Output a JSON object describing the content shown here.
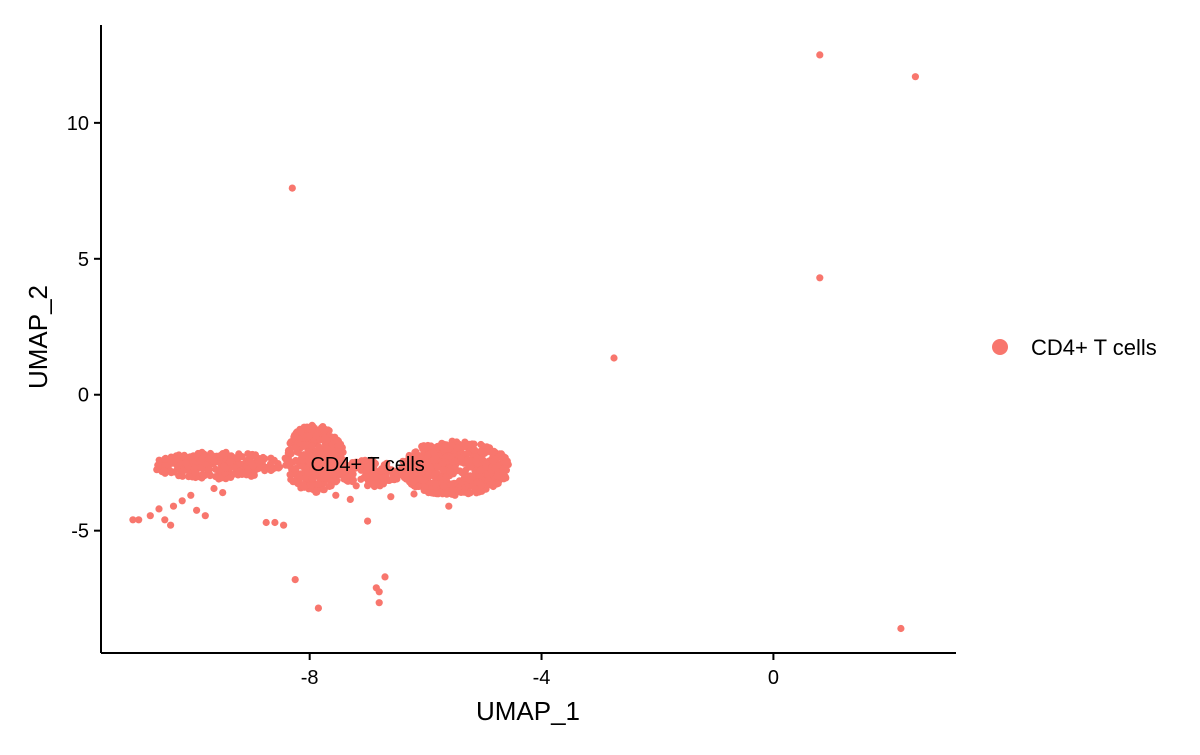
{
  "chart_data": {
    "type": "scatter",
    "xlabel": "UMAP_1",
    "ylabel": "UMAP_2",
    "xlim": [
      -11.6,
      3.15
    ],
    "ylim": [
      -9.5,
      13.6
    ],
    "x_ticks": [
      -8,
      -4,
      0
    ],
    "y_ticks": [
      -5,
      0,
      5,
      10
    ],
    "x_tick_labels": [
      "-8",
      "-4",
      "0"
    ],
    "y_tick_labels": [
      "-5",
      "0",
      "5",
      "10"
    ],
    "grid": false,
    "legend_position": "right",
    "series": [
      {
        "name": "CD4+ T cells",
        "color": "#F8766D",
        "clusters": [
          {
            "x_range": [
              -8.45,
              -7.4
            ],
            "y_range": [
              -3.6,
              -1.1
            ],
            "count": 380
          },
          {
            "x_range": [
              -6.45,
              -4.55
            ],
            "y_range": [
              -3.7,
              -1.7
            ],
            "count": 520
          },
          {
            "x_range": [
              -10.7,
              -8.5
            ],
            "y_range": [
              -3.1,
              -2.1
            ],
            "count": 240
          },
          {
            "x_range": [
              -7.5,
              -6.45
            ],
            "y_range": [
              -3.4,
              -2.4
            ],
            "count": 120
          }
        ],
        "points": [
          {
            "x": 0.8,
            "y": 12.5
          },
          {
            "x": 2.45,
            "y": 11.7
          },
          {
            "x": -8.3,
            "y": 7.6
          },
          {
            "x": 0.8,
            "y": 4.3
          },
          {
            "x": -2.75,
            "y": 1.35
          },
          {
            "x": -11.05,
            "y": -4.6
          },
          {
            "x": -10.95,
            "y": -4.6
          },
          {
            "x": -10.75,
            "y": -4.45
          },
          {
            "x": -10.6,
            "y": -4.2
          },
          {
            "x": -10.5,
            "y": -4.6
          },
          {
            "x": -10.4,
            "y": -4.8
          },
          {
            "x": -10.35,
            "y": -4.1
          },
          {
            "x": -10.2,
            "y": -3.9
          },
          {
            "x": -10.05,
            "y": -3.7
          },
          {
            "x": -9.95,
            "y": -4.25
          },
          {
            "x": -9.8,
            "y": -4.45
          },
          {
            "x": -9.65,
            "y": -3.45
          },
          {
            "x": -9.5,
            "y": -3.6
          },
          {
            "x": -8.75,
            "y": -4.7
          },
          {
            "x": -8.6,
            "y": -4.7
          },
          {
            "x": -8.45,
            "y": -4.8
          },
          {
            "x": -8.25,
            "y": -6.8
          },
          {
            "x": -7.85,
            "y": -7.85
          },
          {
            "x": -7.55,
            "y": -3.7
          },
          {
            "x": -7.3,
            "y": -3.85
          },
          {
            "x": -7.0,
            "y": -4.65
          },
          {
            "x": -6.85,
            "y": -7.1
          },
          {
            "x": -6.8,
            "y": -7.25
          },
          {
            "x": -6.8,
            "y": -7.65
          },
          {
            "x": -6.7,
            "y": -6.7
          },
          {
            "x": -6.9,
            "y": -3.3
          },
          {
            "x": -6.6,
            "y": -3.75
          },
          {
            "x": -6.2,
            "y": -3.65
          },
          {
            "x": -5.95,
            "y": -3.6
          },
          {
            "x": -5.6,
            "y": -4.1
          },
          {
            "x": 2.2,
            "y": -8.6
          }
        ]
      }
    ],
    "annotations": [
      {
        "text": "CD4+ T cells",
        "x": -7.0,
        "y": -2.55
      }
    ]
  }
}
